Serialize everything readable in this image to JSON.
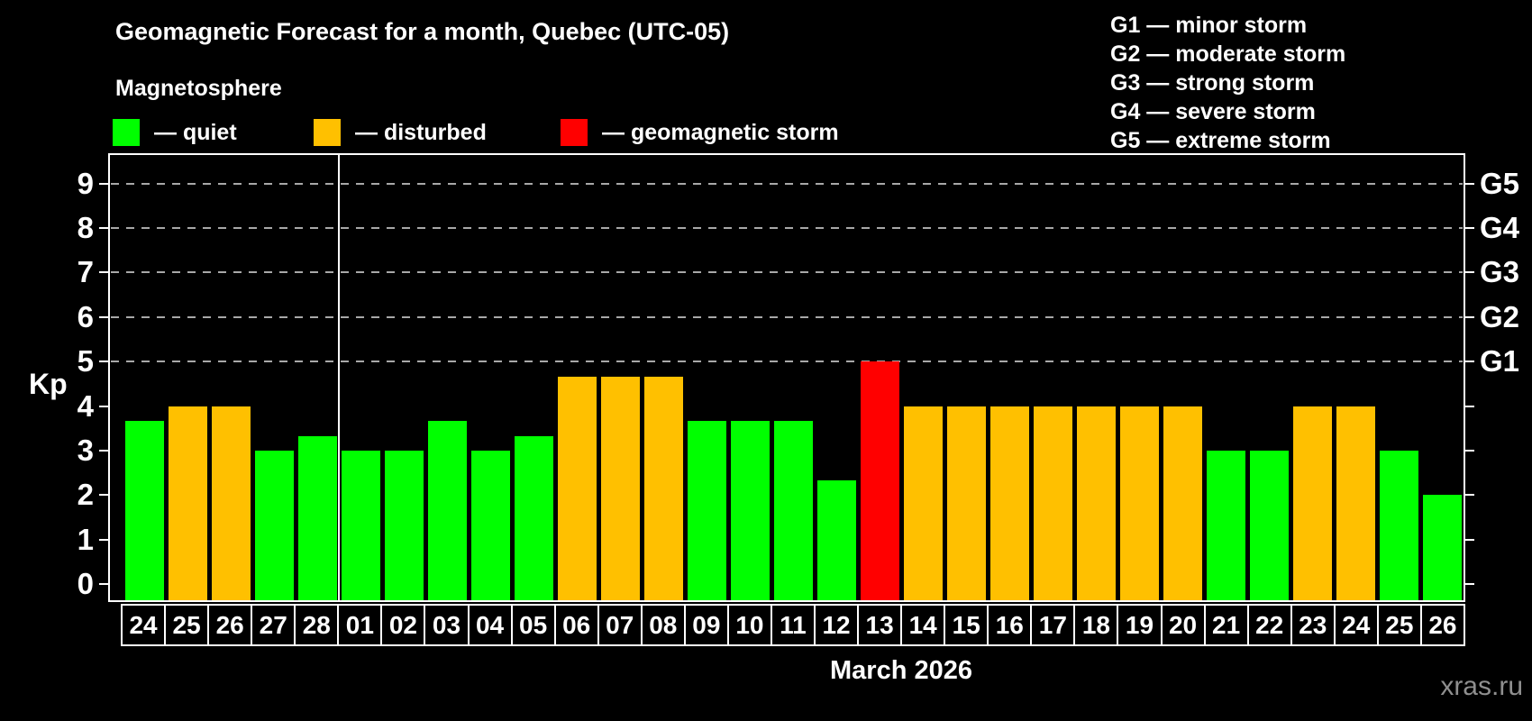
{
  "title": "Geomagnetic Forecast for a month, Quebec (UTC-05)",
  "subtitle": "Magnetosphere",
  "legend": {
    "quiet": "— quiet",
    "disturbed": "— disturbed",
    "storm": "— geomagnetic storm"
  },
  "g_legend": [
    "G1 — minor storm",
    "G2 — moderate storm",
    "G3 — strong storm",
    "G4 — severe storm",
    "G5 — extreme storm"
  ],
  "watermark": "xras.ru",
  "colors": {
    "quiet": "#00ff00",
    "disturbed": "#ffc000",
    "storm": "#ff0000",
    "grid": "#a8a8a8",
    "axis": "#ffffff",
    "background": "#000000"
  },
  "chart_data": {
    "type": "bar",
    "title": "Geomagnetic Forecast for a month, Quebec (UTC-05)",
    "xlabel": "March 2026",
    "ylabel": "Kp",
    "ylim": [
      -0.36,
      9.64
    ],
    "yticks": [
      0,
      1,
      2,
      3,
      4,
      5,
      6,
      7,
      8,
      9
    ],
    "gridlines": [
      5,
      6,
      7,
      8,
      9
    ],
    "grid_style": "dashed",
    "legend_position": "top",
    "right_axis_labels": [
      {
        "label": "G1",
        "value": 5
      },
      {
        "label": "G2",
        "value": 6
      },
      {
        "label": "G3",
        "value": 7
      },
      {
        "label": "G4",
        "value": 8
      },
      {
        "label": "G5",
        "value": 9
      }
    ],
    "separator_after_index": 5,
    "days": [
      {
        "date": "24",
        "kp": 3.67,
        "status": "quiet"
      },
      {
        "date": "25",
        "kp": 4.0,
        "status": "disturbed"
      },
      {
        "date": "26",
        "kp": 4.0,
        "status": "disturbed"
      },
      {
        "date": "27",
        "kp": 3.0,
        "status": "quiet"
      },
      {
        "date": "28",
        "kp": 3.33,
        "status": "quiet"
      },
      {
        "date": "01",
        "kp": 3.0,
        "status": "quiet"
      },
      {
        "date": "02",
        "kp": 3.0,
        "status": "quiet"
      },
      {
        "date": "03",
        "kp": 3.67,
        "status": "quiet"
      },
      {
        "date": "04",
        "kp": 3.0,
        "status": "quiet"
      },
      {
        "date": "05",
        "kp": 3.33,
        "status": "quiet"
      },
      {
        "date": "06",
        "kp": 4.67,
        "status": "disturbed"
      },
      {
        "date": "07",
        "kp": 4.67,
        "status": "disturbed"
      },
      {
        "date": "08",
        "kp": 4.67,
        "status": "disturbed"
      },
      {
        "date": "09",
        "kp": 3.67,
        "status": "quiet"
      },
      {
        "date": "10",
        "kp": 3.67,
        "status": "quiet"
      },
      {
        "date": "11",
        "kp": 3.67,
        "status": "quiet"
      },
      {
        "date": "12",
        "kp": 2.33,
        "status": "quiet"
      },
      {
        "date": "13",
        "kp": 5.0,
        "status": "storm"
      },
      {
        "date": "14",
        "kp": 4.0,
        "status": "disturbed"
      },
      {
        "date": "15",
        "kp": 4.0,
        "status": "disturbed"
      },
      {
        "date": "16",
        "kp": 4.0,
        "status": "disturbed"
      },
      {
        "date": "17",
        "kp": 4.0,
        "status": "disturbed"
      },
      {
        "date": "18",
        "kp": 4.0,
        "status": "disturbed"
      },
      {
        "date": "19",
        "kp": 4.0,
        "status": "disturbed"
      },
      {
        "date": "20",
        "kp": 4.0,
        "status": "disturbed"
      },
      {
        "date": "21",
        "kp": 3.0,
        "status": "quiet"
      },
      {
        "date": "22",
        "kp": 3.0,
        "status": "quiet"
      },
      {
        "date": "23",
        "kp": 4.0,
        "status": "disturbed"
      },
      {
        "date": "24",
        "kp": 4.0,
        "status": "disturbed"
      },
      {
        "date": "25",
        "kp": 3.0,
        "status": "quiet"
      },
      {
        "date": "26",
        "kp": 2.0,
        "status": "quiet"
      }
    ]
  }
}
